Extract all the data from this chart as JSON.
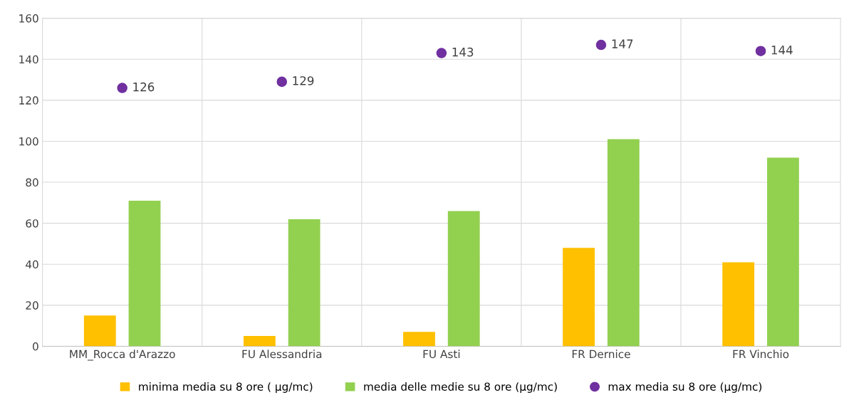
{
  "chart_data": {
    "type": "bar",
    "categories": [
      "MM_Rocca d'Arazzo",
      "FU Alessandria",
      "FU Asti",
      "FR Dernice",
      "FR Vinchio"
    ],
    "series": [
      {
        "name": "minima media su 8 ore ( µg/mc)",
        "color": "#ffc000",
        "values": [
          15,
          5,
          7,
          48,
          41
        ]
      },
      {
        "name": "media delle medie su 8 ore (µg/mc)",
        "color": "#92d050",
        "values": [
          71,
          62,
          66,
          101,
          92
        ]
      },
      {
        "name": "max media su 8 ore (µg/mc)",
        "color": "#7030a0",
        "type": "scatter",
        "values": [
          126,
          129,
          143,
          147,
          144
        ],
        "value_labels": [
          "126",
          "129",
          "143",
          "147",
          "144"
        ]
      }
    ],
    "ylim": [
      0,
      160
    ],
    "yticks": [
      0,
      20,
      40,
      60,
      80,
      100,
      120,
      140,
      160
    ],
    "grid": true,
    "legend": "bottom",
    "marker": "circle"
  }
}
